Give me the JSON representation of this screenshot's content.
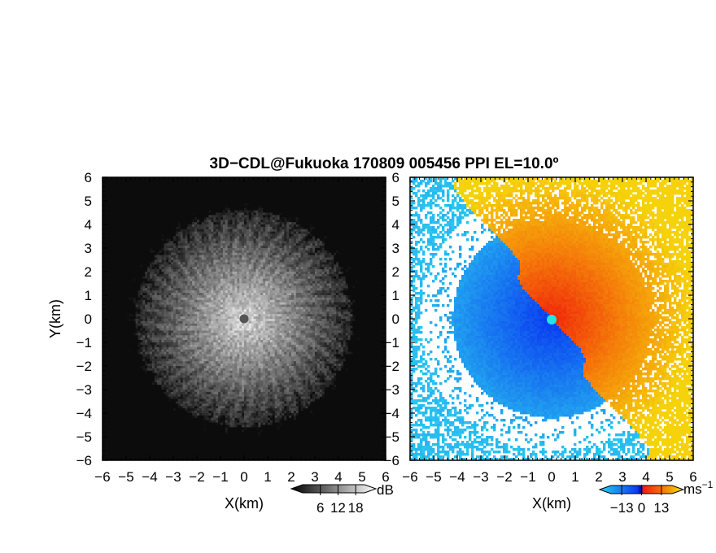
{
  "title": "3D−CDL@Fukuoka 170809 005456 PPI EL=10.0º",
  "chart_data": [
    {
      "type": "heatmap",
      "title": "",
      "xlabel": "X(km)",
      "ylabel": "Y(km)",
      "xlim": [
        -6,
        6
      ],
      "ylim": [
        -6,
        6
      ],
      "xticks": [
        "−6",
        "−5",
        "−4",
        "−3",
        "−2",
        "−1",
        "0",
        "1",
        "2",
        "3",
        "4",
        "5",
        "6"
      ],
      "yticks": [
        "6",
        "5",
        "4",
        "3",
        "2",
        "1",
        "0",
        "−1",
        "−2",
        "−3",
        "−4",
        "−5",
        "−6"
      ],
      "variable": "backscatter intensity",
      "colorbar": {
        "unit": "dB",
        "ticks": [
          "6",
          "12",
          "18"
        ],
        "tick_values": [
          6,
          12,
          18
        ],
        "range": [
          0,
          21
        ],
        "colormap": "grayscale",
        "extend": "both"
      },
      "center_marker": {
        "x": 0,
        "y": 0,
        "color": "#555555"
      },
      "pattern": "bright at radar center decaying radially to dark beyond ~5 km"
    },
    {
      "type": "heatmap",
      "title": "",
      "xlabel": "X(km)",
      "ylabel": "",
      "xlim": [
        -6,
        6
      ],
      "ylim": [
        -6,
        6
      ],
      "xticks": [
        "−6",
        "−5",
        "−4",
        "−3",
        "−2",
        "−1",
        "0",
        "1",
        "2",
        "3",
        "4",
        "5",
        "6"
      ],
      "yticks": [
        "6",
        "5",
        "4",
        "3",
        "2",
        "1",
        "0",
        "−1",
        "−2",
        "−3",
        "−4",
        "−5",
        "−6"
      ],
      "variable": "radial (Doppler) velocity",
      "colorbar": {
        "unit": "ms",
        "unit_exponent": "−1",
        "ticks": [
          "−13",
          "0",
          "13"
        ],
        "tick_values": [
          -13,
          0,
          13
        ],
        "range": [
          -20,
          20
        ],
        "colormap": "blue-cyan-red-orange-yellow",
        "extend": "both"
      },
      "center_marker": {
        "x": 0,
        "y": 0,
        "color": "#22e6e6"
      },
      "pattern": "negative (blue) velocities on the west side, positive (red-orange) on the east side, zero line oriented NW-SE"
    }
  ],
  "colors": {
    "velocity_negative_strong": "#0a3cf0",
    "velocity_negative_weak": "#28b4f0",
    "velocity_positive_strong": "#f01e0a",
    "velocity_positive_weak": "#f5d20a",
    "center_marker_velocity": "#22e6e6",
    "center_marker_intensity": "#555555"
  }
}
